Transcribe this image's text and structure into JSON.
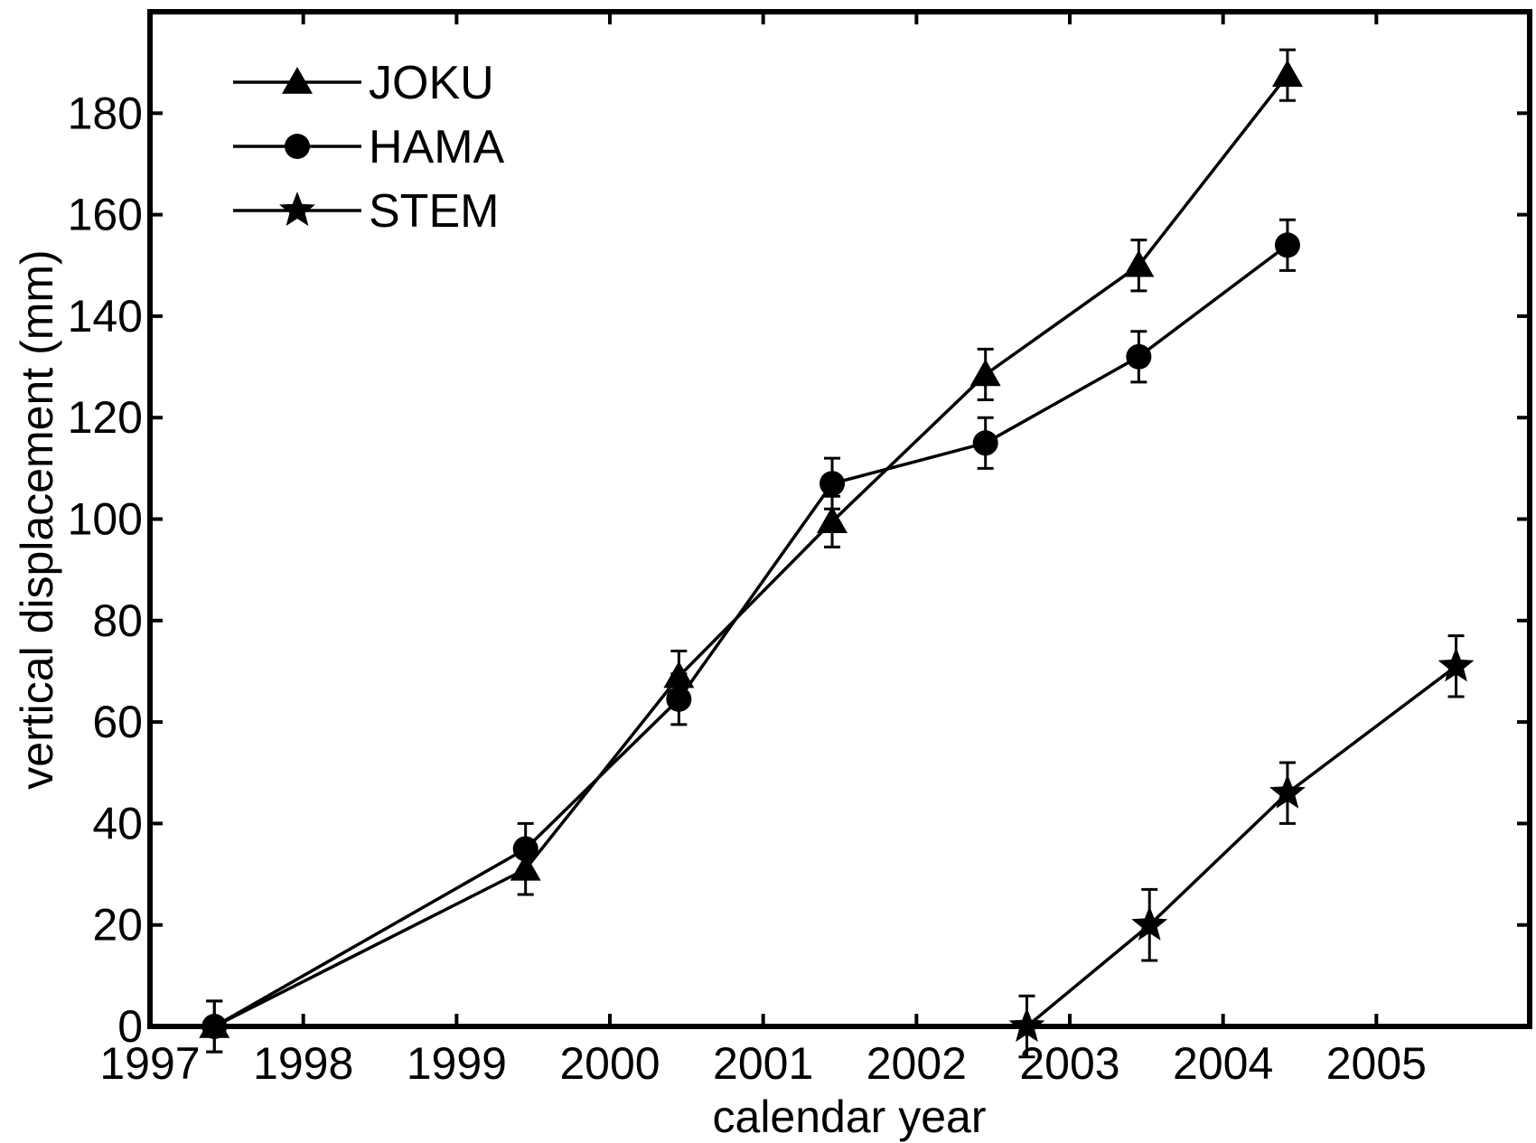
{
  "chart_data": {
    "type": "line",
    "title": "",
    "xlabel": "calendar year",
    "ylabel": "vertical displacement (mm)",
    "xlim": [
      1997,
      2006
    ],
    "ylim": [
      0,
      200
    ],
    "x_ticks": [
      1997,
      1998,
      1999,
      2000,
      2001,
      2002,
      2003,
      2004,
      2005
    ],
    "y_ticks": [
      0,
      20,
      40,
      60,
      80,
      100,
      120,
      140,
      160,
      180
    ],
    "grid": false,
    "legend_position": "top-left",
    "series": [
      {
        "name": "JOKU",
        "marker": "triangle",
        "points": [
          {
            "x": 1997.42,
            "y": 0,
            "err": 5
          },
          {
            "x": 1999.45,
            "y": 31,
            "err": 5
          },
          {
            "x": 2000.45,
            "y": 69,
            "err": 5
          },
          {
            "x": 2001.45,
            "y": 99.5,
            "err": 5
          },
          {
            "x": 2002.45,
            "y": 128.5,
            "err": 5
          },
          {
            "x": 2003.45,
            "y": 150,
            "err": 5
          },
          {
            "x": 2004.42,
            "y": 187.5,
            "err": 5
          }
        ]
      },
      {
        "name": "HAMA",
        "marker": "circle",
        "points": [
          {
            "x": 1997.42,
            "y": 0,
            "err": 5
          },
          {
            "x": 1999.45,
            "y": 35,
            "err": 5
          },
          {
            "x": 2000.45,
            "y": 64.5,
            "err": 5
          },
          {
            "x": 2001.45,
            "y": 107,
            "err": 5
          },
          {
            "x": 2002.45,
            "y": 115,
            "err": 5
          },
          {
            "x": 2003.45,
            "y": 132,
            "err": 5
          },
          {
            "x": 2004.42,
            "y": 154,
            "err": 5
          }
        ]
      },
      {
        "name": "STEM",
        "marker": "star",
        "points": [
          {
            "x": 2002.72,
            "y": 0,
            "err": 6
          },
          {
            "x": 2003.52,
            "y": 20,
            "err": 7
          },
          {
            "x": 2004.42,
            "y": 46,
            "err": 6
          },
          {
            "x": 2005.52,
            "y": 71,
            "err": 6
          }
        ]
      }
    ]
  },
  "colors": {
    "axis": "#000000",
    "series": "#000000",
    "background": "#ffffff"
  }
}
